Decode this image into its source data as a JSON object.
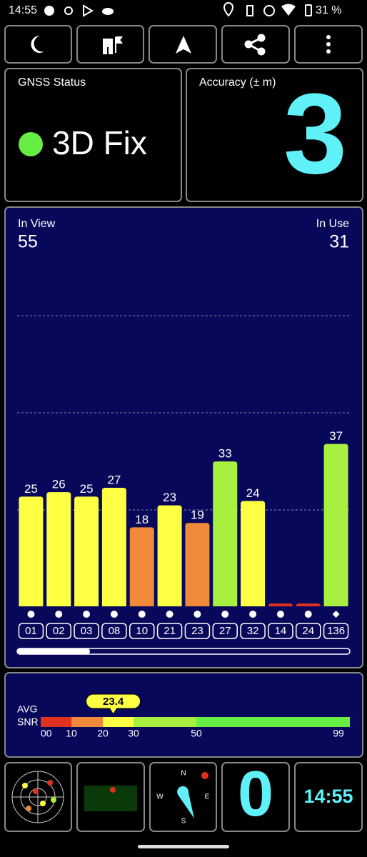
{
  "status_bar": {
    "time": "14:55",
    "battery": "31 %"
  },
  "gnss_status": {
    "label": "GNSS Status",
    "value": "3D Fix"
  },
  "accuracy": {
    "label": "Accuracy (± m)",
    "value": "3"
  },
  "chart_data": {
    "type": "bar",
    "in_view_label": "In View",
    "in_view": "55",
    "in_use_label": "In Use",
    "in_use": "31",
    "categories": [
      "01",
      "02",
      "03",
      "08",
      "10",
      "21",
      "23",
      "27",
      "32",
      "14",
      "24",
      "136"
    ],
    "values": [
      25,
      26,
      25,
      27,
      18,
      23,
      19,
      33,
      24,
      0,
      0,
      37
    ],
    "colors": [
      "#ffff44",
      "#ffff44",
      "#ffff44",
      "#ffff44",
      "#f0893a",
      "#ffff44",
      "#f0893a",
      "#a8f040",
      "#ffff44",
      "#e03020",
      "#e03020",
      "#a8f040"
    ],
    "shapes": [
      "circle",
      "circle",
      "circle",
      "circle",
      "circle",
      "circle",
      "circle",
      "circle",
      "circle",
      "circle",
      "circle",
      "diamond"
    ],
    "ylim": [
      0,
      75
    ]
  },
  "snr": {
    "avg_label": "AVG",
    "snr_label": "SNR",
    "value": 23.4,
    "ticks": [
      {
        "value": 0,
        "label": "00"
      },
      10,
      20,
      30,
      50,
      99
    ],
    "colors": [
      "#e03020",
      "#f0893a",
      "#ffff44",
      "#a8f040",
      "#66ee44"
    ]
  },
  "tiles": {
    "count": "0",
    "clock": "14:55"
  }
}
